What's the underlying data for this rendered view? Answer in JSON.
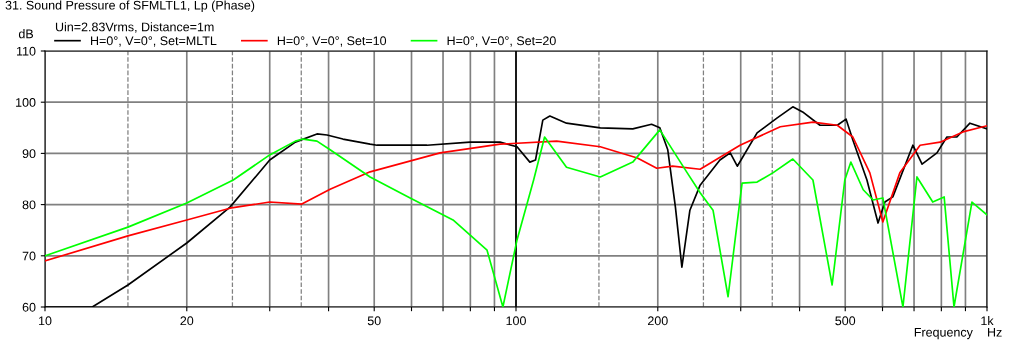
{
  "chart_data": {
    "type": "line",
    "title": "31. Sound Pressure of SFMLTL1, Lp (Phase)",
    "subtitle": "Uin=2.83Vrms, Distance=1m",
    "xlabel": "Frequency",
    "ylabel": "dB",
    "annotations": [
      "Hz"
    ],
    "log": "x",
    "grid": true,
    "legend": "top left",
    "line_style": "solid",
    "marker": "none",
    "xlim": [
      10,
      1000
    ],
    "ylim": [
      60,
      110
    ],
    "xticks": [
      10,
      20,
      {
        "value": 30,
        "label": null
      },
      {
        "value": 40,
        "label": null
      },
      50,
      {
        "value": 60,
        "label": null
      },
      {
        "value": 70,
        "label": null
      },
      {
        "value": 80,
        "label": null
      },
      {
        "value": 90,
        "label": null
      },
      100,
      200,
      {
        "value": 300,
        "label": null
      },
      {
        "value": 400,
        "label": null
      },
      500,
      {
        "value": 600,
        "label": null
      },
      {
        "value": 700,
        "label": null
      },
      {
        "value": 800,
        "label": null
      },
      {
        "value": 900,
        "label": null
      },
      {
        "value": 1000,
        "label": "1k"
      }
    ],
    "yticks": [
      60,
      70,
      80,
      90,
      100,
      110
    ],
    "ref_lines": [
      {
        "axis": "x",
        "value": 15,
        "color": "#808080",
        "line_style": "dashed"
      },
      {
        "axis": "x",
        "value": 25,
        "color": "#808080",
        "line_style": "dashed"
      },
      {
        "axis": "x",
        "value": 35,
        "color": "#808080",
        "line_style": "dashed"
      },
      {
        "axis": "x",
        "value": 100,
        "color": "#000000",
        "line_style": "solid"
      },
      {
        "axis": "x",
        "value": 150,
        "color": "#808080",
        "line_style": "dashed"
      },
      {
        "axis": "x",
        "value": 250,
        "color": "#808080",
        "line_style": "dashed"
      },
      {
        "axis": "x",
        "value": 350,
        "color": "#808080",
        "line_style": "dashed"
      }
    ],
    "series": [
      {
        "name": "H=0°, V=0°, Set=MLTL",
        "color": "#000000",
        "x": [
          10,
          12.6,
          15,
          20,
          24.7,
          30,
          34,
          37.8,
          39.7,
          42.9,
          49,
          50.7,
          64.7,
          79.9,
          92.5,
          100.5,
          107,
          110,
          114,
          118,
          128,
          151,
          177,
          194,
          202,
          210,
          218,
          225,
          234,
          246,
          271,
          285,
          295,
          325,
          358,
          387,
          406,
          442,
          481,
          502,
          519,
          556,
          587,
          607,
          631,
          696,
          728,
          783,
          822,
          863,
          920,
          1000
        ],
        "values": [
          60,
          60,
          64.3,
          72.5,
          79.5,
          88.7,
          92.2,
          93.8,
          93.6,
          92.8,
          91.8,
          91.6,
          91.6,
          92.2,
          92.2,
          91.3,
          88.3,
          88.7,
          96.5,
          97.3,
          95.9,
          95.0,
          94.8,
          95.7,
          95.0,
          90.7,
          79.5,
          67.8,
          78.9,
          83.8,
          88.7,
          90.1,
          87.5,
          94.0,
          96.9,
          99.1,
          98.1,
          95.5,
          95.5,
          96.7,
          92.6,
          84.8,
          76.4,
          80.5,
          81.5,
          91.6,
          87.9,
          90.1,
          93.2,
          93.2,
          95.9,
          94.8
        ]
      },
      {
        "name": "H=0°, V=0°, Set=10",
        "color": "#ff0000",
        "x": [
          10,
          15,
          20,
          24.7,
          30,
          35.1,
          40.3,
          49,
          69,
          92.5,
          122,
          151,
          181,
          199,
          215,
          246,
          299,
          364,
          427,
          481,
          519,
          564,
          601,
          653,
          721,
          795,
          889,
          1000
        ],
        "values": [
          69.0,
          73.9,
          77.0,
          79.3,
          80.5,
          80.1,
          83.0,
          86.4,
          90.1,
          91.8,
          92.4,
          91.3,
          89.1,
          87.1,
          87.5,
          86.9,
          91.6,
          95.2,
          96.1,
          95.5,
          93.2,
          86.2,
          76.6,
          86.2,
          91.6,
          92.2,
          94.2,
          95.4
        ]
      },
      {
        "name": "H=0°, V=0°, Set=20",
        "color": "#00ff00",
        "x": [
          10,
          15,
          20,
          25.1,
          30,
          34,
          35.3,
          37.8,
          40.3,
          49,
          59.6,
          73.5,
          86.8,
          93.8,
          100.5,
          109,
          115,
          128,
          151,
          177,
          202,
          231,
          246,
          262,
          282,
          302,
          325,
          351,
          387,
          427,
          469,
          499,
          514,
          546,
          573,
          601,
          663,
          710,
          767,
          811,
          851,
          929,
          1000
        ],
        "values": [
          70.0,
          75.6,
          80.3,
          84.8,
          89.7,
          92.4,
          92.8,
          92.4,
          90.7,
          85.4,
          81.3,
          77.0,
          71.1,
          60,
          73.1,
          84.8,
          93.2,
          87.3,
          85.4,
          88.3,
          94.6,
          86.2,
          82.3,
          78.9,
          62.0,
          84.2,
          84.4,
          86.2,
          88.9,
          84.8,
          64.3,
          84.8,
          88.3,
          82.9,
          80.9,
          81.3,
          60.0,
          85.4,
          80.5,
          81.5,
          60.0,
          80.5,
          78.0
        ]
      }
    ]
  }
}
